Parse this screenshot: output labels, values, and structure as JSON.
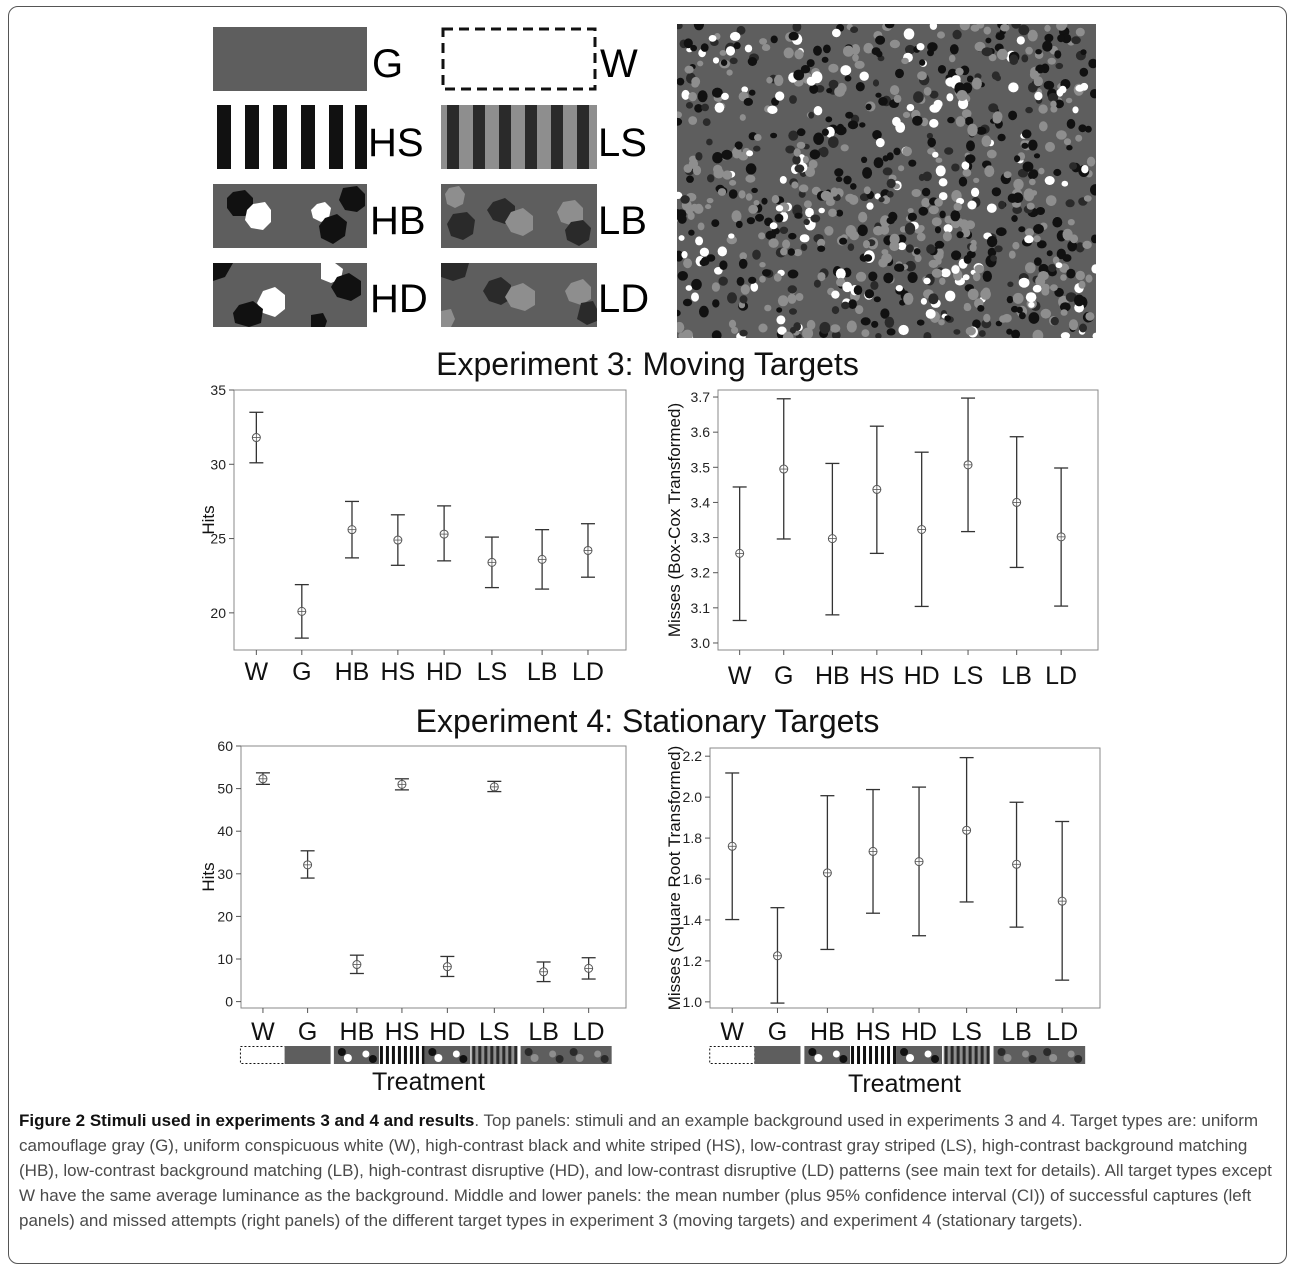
{
  "stimuli": {
    "labels": {
      "G": "G",
      "W": "W",
      "HS": "HS",
      "LS": "LS",
      "HB": "HB",
      "LB": "LB",
      "HD": "HD",
      "LD": "LD"
    },
    "colors": {
      "gray": "#5e5e5e",
      "black": "#111111",
      "white": "#ffffff",
      "dark": "#2a2a2a",
      "light": "#8e8e8e"
    }
  },
  "titles": {
    "exp3": "Experiment 3: Moving Targets",
    "exp4": "Experiment 4: Stationary Targets"
  },
  "xlabel": "Treatment",
  "chart_data": [
    {
      "type": "scatter",
      "panel": "Experiment 3 hits",
      "categories": [
        "W",
        "G",
        "HB",
        "HS",
        "HD",
        "LS",
        "LB",
        "LD"
      ],
      "ylabel": "Hits",
      "ylim": [
        17.5,
        35
      ],
      "yticks": [
        20,
        25,
        30,
        35
      ],
      "means": [
        31.8,
        20.1,
        25.6,
        24.9,
        25.3,
        23.4,
        23.6,
        24.2
      ],
      "lower": [
        30.1,
        18.3,
        23.7,
        23.2,
        23.5,
        21.7,
        21.6,
        22.4
      ],
      "upper": [
        33.5,
        21.9,
        27.5,
        26.6,
        27.2,
        25.1,
        25.6,
        26.0
      ]
    },
    {
      "type": "scatter",
      "panel": "Experiment 3 misses",
      "categories": [
        "W",
        "G",
        "HB",
        "HS",
        "HD",
        "LS",
        "LB",
        "LD"
      ],
      "ylabel": "Misses (Box-Cox Transformed)",
      "ylim": [
        2.98,
        3.72
      ],
      "yticks": [
        3.0,
        3.1,
        3.2,
        3.3,
        3.4,
        3.5,
        3.6,
        3.7
      ],
      "means": [
        3.255,
        3.495,
        3.297,
        3.437,
        3.323,
        3.507,
        3.4,
        3.302
      ],
      "lower": [
        3.064,
        3.296,
        3.08,
        3.255,
        3.104,
        3.317,
        3.215,
        3.105
      ],
      "upper": [
        3.444,
        3.695,
        3.511,
        3.617,
        3.543,
        3.697,
        3.587,
        3.498
      ]
    },
    {
      "type": "scatter",
      "panel": "Experiment 4 hits",
      "categories": [
        "W",
        "G",
        "HB",
        "HS",
        "HD",
        "LS",
        "LB",
        "LD"
      ],
      "ylabel": "Hits",
      "ylim": [
        -1.5,
        60
      ],
      "yticks": [
        0,
        10,
        20,
        30,
        40,
        50,
        60
      ],
      "means": [
        52.3,
        32.1,
        8.7,
        51.0,
        8.2,
        50.4,
        7.0,
        7.8
      ],
      "lower": [
        51.0,
        29.0,
        6.6,
        49.7,
        5.9,
        49.3,
        4.7,
        5.3
      ],
      "upper": [
        53.7,
        35.4,
        10.9,
        52.3,
        10.6,
        51.7,
        9.3,
        10.3
      ]
    },
    {
      "type": "scatter",
      "panel": "Experiment 4 misses",
      "categories": [
        "W",
        "G",
        "HB",
        "HS",
        "HD",
        "LS",
        "LB",
        "LD"
      ],
      "ylabel": "Misses (Square Root Transformed)",
      "ylim": [
        0.97,
        2.24
      ],
      "yticks": [
        1.0,
        1.2,
        1.4,
        1.6,
        1.8,
        2.0,
        2.2
      ],
      "means": [
        1.76,
        1.225,
        1.63,
        1.735,
        1.685,
        1.838,
        1.672,
        1.492
      ],
      "lower": [
        1.402,
        0.994,
        1.256,
        1.433,
        1.323,
        1.488,
        1.365,
        1.106
      ],
      "upper": [
        2.118,
        1.46,
        2.007,
        2.037,
        2.049,
        2.193,
        1.975,
        1.881
      ]
    }
  ],
  "caption": {
    "head": "Figure 2 Stimuli used in experiments 3 and 4 and results",
    "body": ". Top panels: stimuli and an example background used in experiments 3 and 4. Target types are: uniform camouflage gray (G), uniform conspicuous white (W), high-contrast black and white striped (HS), low-contrast gray striped (LS), high-contrast background matching (HB), low-contrast background matching (LB), high-contrast disruptive (HD), and low-contrast disruptive (LD) patterns (see main text for details). All target types except W have the same average luminance as the background. Middle and lower panels: the mean number (plus 95% confidence interval (CI)) of successful captures (left panels) and missed attempts (right panels) of the different target types in experiment 3 (moving targets) and experiment 4 (stationary targets)."
  }
}
